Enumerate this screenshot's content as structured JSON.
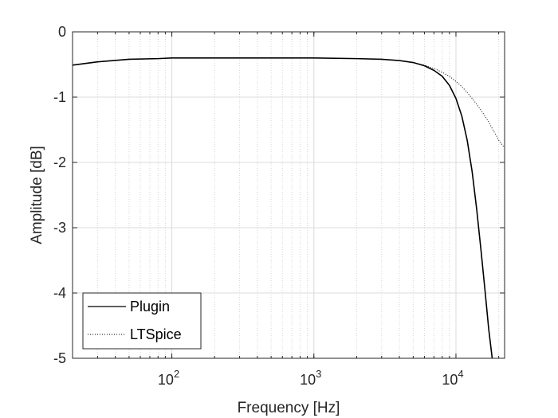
{
  "chart_data": {
    "type": "line",
    "xlabel": "Frequency [Hz]",
    "ylabel": "Amplitude [dB]",
    "x_scale": "log",
    "xlim": [
      20,
      22000
    ],
    "ylim": [
      -5,
      0
    ],
    "grid": true,
    "legend_position": "bottom-left",
    "x_ticks": [
      {
        "value": 100,
        "base": "10",
        "exp": "2"
      },
      {
        "value": 1000,
        "base": "10",
        "exp": "3"
      },
      {
        "value": 10000,
        "base": "10",
        "exp": "4"
      }
    ],
    "y_ticks": [
      {
        "value": 0,
        "label": "0"
      },
      {
        "value": -1,
        "label": "-1"
      },
      {
        "value": -2,
        "label": "-2"
      },
      {
        "value": -3,
        "label": "-3"
      },
      {
        "value": -4,
        "label": "-4"
      },
      {
        "value": -5,
        "label": "-5"
      }
    ],
    "series": [
      {
        "name": "Plugin",
        "color": "#000000",
        "style": "solid",
        "x": [
          20,
          30,
          50,
          80,
          100,
          200,
          500,
          1000,
          2000,
          3000,
          4000,
          5000,
          6000,
          7000,
          8000,
          9000,
          10000,
          11000,
          12000,
          13000,
          14000,
          15000,
          16000,
          17000,
          18000
        ],
        "y": [
          -0.51,
          -0.46,
          -0.42,
          -0.41,
          -0.4,
          -0.4,
          -0.4,
          -0.4,
          -0.41,
          -0.42,
          -0.44,
          -0.47,
          -0.52,
          -0.59,
          -0.68,
          -0.82,
          -1.02,
          -1.29,
          -1.66,
          -2.14,
          -2.72,
          -3.34,
          -3.95,
          -4.55,
          -5.05
        ]
      },
      {
        "name": "LTSpice",
        "color": "#000000",
        "style": "dotted",
        "x": [
          20,
          30,
          50,
          80,
          100,
          200,
          500,
          1000,
          2000,
          3000,
          4000,
          5000,
          6000,
          7000,
          8000,
          9000,
          10000,
          11000,
          12000,
          13000,
          14000,
          15000,
          16000,
          17000,
          18000,
          19000,
          20000,
          21000,
          22000
        ],
        "y": [
          -0.51,
          -0.46,
          -0.42,
          -0.41,
          -0.4,
          -0.4,
          -0.4,
          -0.4,
          -0.41,
          -0.42,
          -0.44,
          -0.47,
          -0.51,
          -0.56,
          -0.62,
          -0.68,
          -0.76,
          -0.84,
          -0.93,
          -1.02,
          -1.11,
          -1.2,
          -1.29,
          -1.38,
          -1.48,
          -1.57,
          -1.66,
          -1.72,
          -1.78
        ]
      }
    ]
  }
}
